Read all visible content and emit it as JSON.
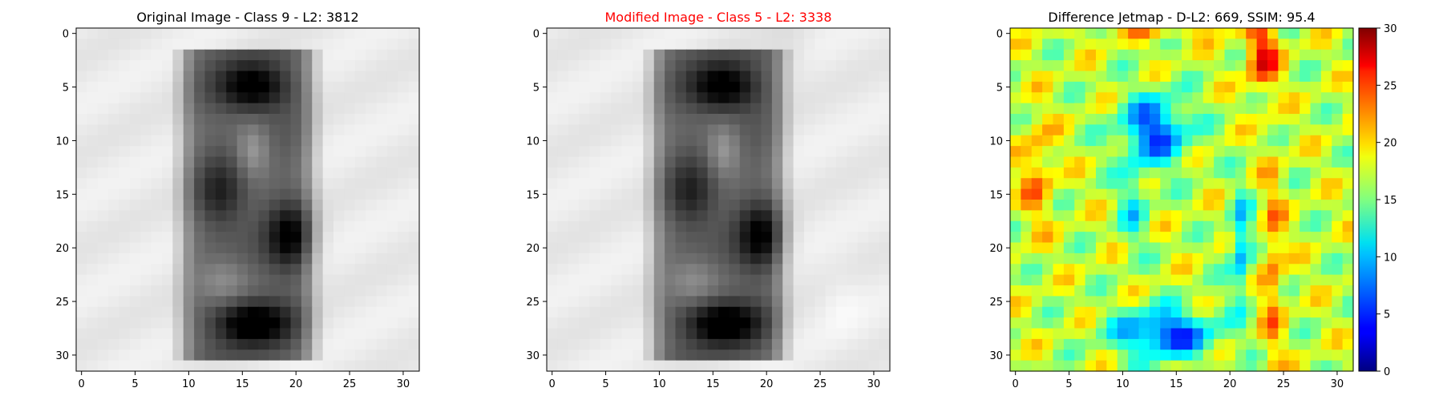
{
  "figure": {
    "background": "#ffffff"
  },
  "chart_data": [
    {
      "type": "heatmap",
      "title": "Original Image - Class 9 - L2: 3812",
      "title_color": "#000000",
      "colormap": "gray",
      "size": 32,
      "xticks": [
        0,
        5,
        10,
        15,
        20,
        25,
        30
      ],
      "yticks": [
        0,
        5,
        10,
        15,
        20,
        25,
        30
      ],
      "xlabel": "",
      "ylabel": ""
    },
    {
      "type": "heatmap",
      "title": "Modified Image - Class 5 - L2: 3338",
      "title_color": "#ff0000",
      "colormap": "gray",
      "size": 32,
      "xticks": [
        0,
        5,
        10,
        15,
        20,
        25,
        30
      ],
      "yticks": [
        0,
        5,
        10,
        15,
        20,
        25,
        30
      ],
      "xlabel": "",
      "ylabel": ""
    },
    {
      "type": "heatmap",
      "title": "Difference Jetmap - D-L2: 669, SSIM: 95.4",
      "title_color": "#000000",
      "colormap": "jet",
      "size": 32,
      "xticks": [
        0,
        5,
        10,
        15,
        20,
        25,
        30
      ],
      "yticks": [
        0,
        5,
        10,
        15,
        20,
        25,
        30
      ],
      "xlabel": "",
      "ylabel": "",
      "colorbar": {
        "vmin": 0,
        "vmax": 30,
        "ticks": [
          0,
          5,
          10,
          15,
          20,
          25,
          30
        ]
      }
    }
  ]
}
